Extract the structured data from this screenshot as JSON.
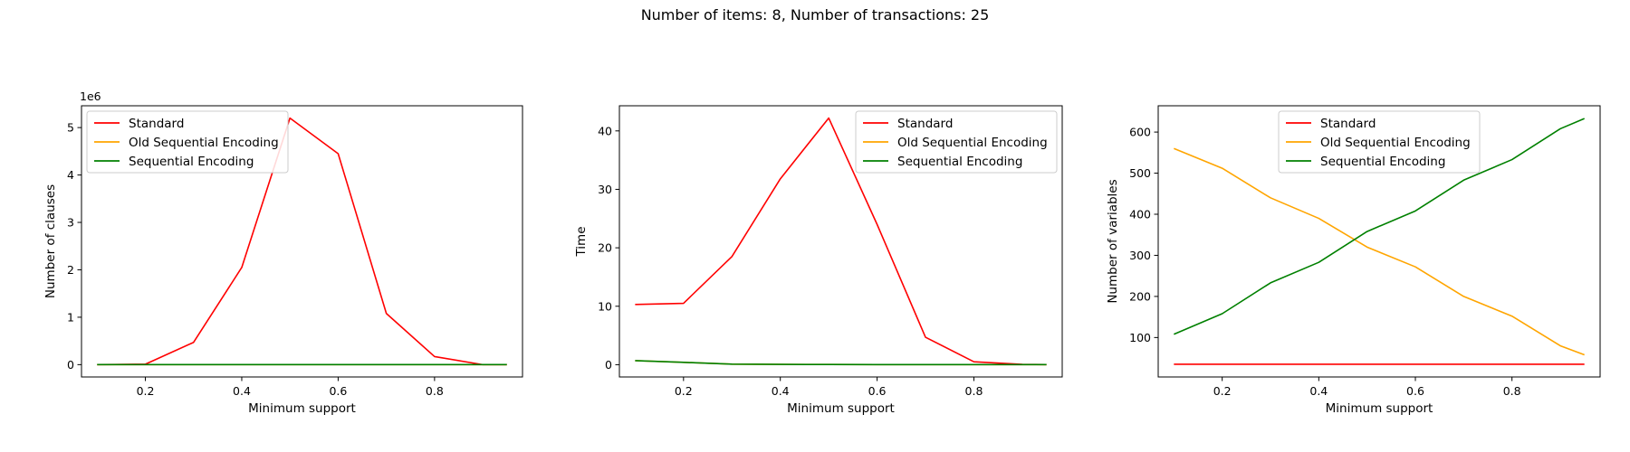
{
  "figure": {
    "suptitle": "Number of items: 8, Number of transactions: 25"
  },
  "chart_data": [
    {
      "type": "line",
      "xlabel": "Minimum support",
      "ylabel": "Number of clauses",
      "y_offset_text": "1e6",
      "xlim": [
        0.0675,
        0.9825
      ],
      "ylim": [
        -0.26,
        5.46
      ],
      "xticks": [
        0.2,
        0.4,
        0.6,
        0.8
      ],
      "xtick_labels": [
        "0.2",
        "0.4",
        "0.6",
        "0.8"
      ],
      "yticks": [
        0,
        1,
        2,
        3,
        4,
        5
      ],
      "ytick_labels": [
        "0",
        "1",
        "2",
        "3",
        "4",
        "5"
      ],
      "x": [
        0.1,
        0.2,
        0.3,
        0.4,
        0.5,
        0.6,
        0.7,
        0.8,
        0.9,
        0.95
      ],
      "grid": false,
      "legend_position": "top-left",
      "series": [
        {
          "name": "Standard",
          "color": "#ff0000",
          "values": [
            0,
            0.01,
            0.47,
            2.05,
            5.2,
            4.45,
            1.08,
            0.17,
            0.0,
            0.0
          ]
        },
        {
          "name": "Old Sequential Encoding",
          "color": "#ffa500",
          "values": [
            0,
            0,
            0,
            0,
            0,
            0,
            0,
            0,
            0,
            0
          ]
        },
        {
          "name": "Sequential Encoding",
          "color": "#008000",
          "values": [
            0,
            0,
            0,
            0,
            0,
            0,
            0,
            0,
            0,
            0
          ]
        }
      ]
    },
    {
      "type": "line",
      "xlabel": "Minimum support",
      "ylabel": "Time",
      "xlim": [
        0.0675,
        0.9825
      ],
      "ylim": [
        -2.1,
        44.3
      ],
      "xticks": [
        0.2,
        0.4,
        0.6,
        0.8
      ],
      "xtick_labels": [
        "0.2",
        "0.4",
        "0.6",
        "0.8"
      ],
      "yticks": [
        0,
        10,
        20,
        30,
        40
      ],
      "ytick_labels": [
        "0",
        "10",
        "20",
        "30",
        "40"
      ],
      "x": [
        0.1,
        0.2,
        0.3,
        0.4,
        0.5,
        0.6,
        0.7,
        0.8,
        0.9,
        0.95
      ],
      "grid": false,
      "legend_position": "top-right",
      "series": [
        {
          "name": "Standard",
          "color": "#ff0000",
          "values": [
            10.3,
            10.5,
            18.5,
            31.8,
            42.2,
            24.0,
            4.7,
            0.5,
            0.05,
            0.02
          ]
        },
        {
          "name": "Old Sequential Encoding",
          "color": "#ffa500",
          "values": [
            0.7,
            0.4,
            0.1,
            0.05,
            0.03,
            0.02,
            0.02,
            0.02,
            0.02,
            0.02
          ]
        },
        {
          "name": "Sequential Encoding",
          "color": "#008000",
          "values": [
            0.7,
            0.4,
            0.1,
            0.05,
            0.03,
            0.02,
            0.02,
            0.02,
            0.02,
            0.02
          ]
        }
      ]
    },
    {
      "type": "line",
      "xlabel": "Minimum support",
      "ylabel": "Number of variables",
      "xlim": [
        0.0675,
        0.9825
      ],
      "ylim": [
        4,
        664
      ],
      "xticks": [
        0.2,
        0.4,
        0.6,
        0.8
      ],
      "xtick_labels": [
        "0.2",
        "0.4",
        "0.6",
        "0.8"
      ],
      "yticks": [
        100,
        200,
        300,
        400,
        500,
        600
      ],
      "ytick_labels": [
        "100",
        "200",
        "300",
        "400",
        "500",
        "600"
      ],
      "x": [
        0.1,
        0.2,
        0.3,
        0.4,
        0.5,
        0.6,
        0.7,
        0.8,
        0.9,
        0.95
      ],
      "grid": false,
      "legend_position": "top-center",
      "series": [
        {
          "name": "Standard",
          "color": "#ff0000",
          "values": [
            35,
            35,
            35,
            35,
            35,
            35,
            35,
            35,
            35,
            35
          ]
        },
        {
          "name": "Old Sequential Encoding",
          "color": "#ffa500",
          "values": [
            560,
            512,
            440,
            390,
            320,
            272,
            200,
            152,
            80,
            58
          ]
        },
        {
          "name": "Sequential Encoding",
          "color": "#008000",
          "values": [
            108,
            158,
            233,
            283,
            358,
            408,
            483,
            533,
            608,
            633
          ]
        }
      ]
    }
  ]
}
